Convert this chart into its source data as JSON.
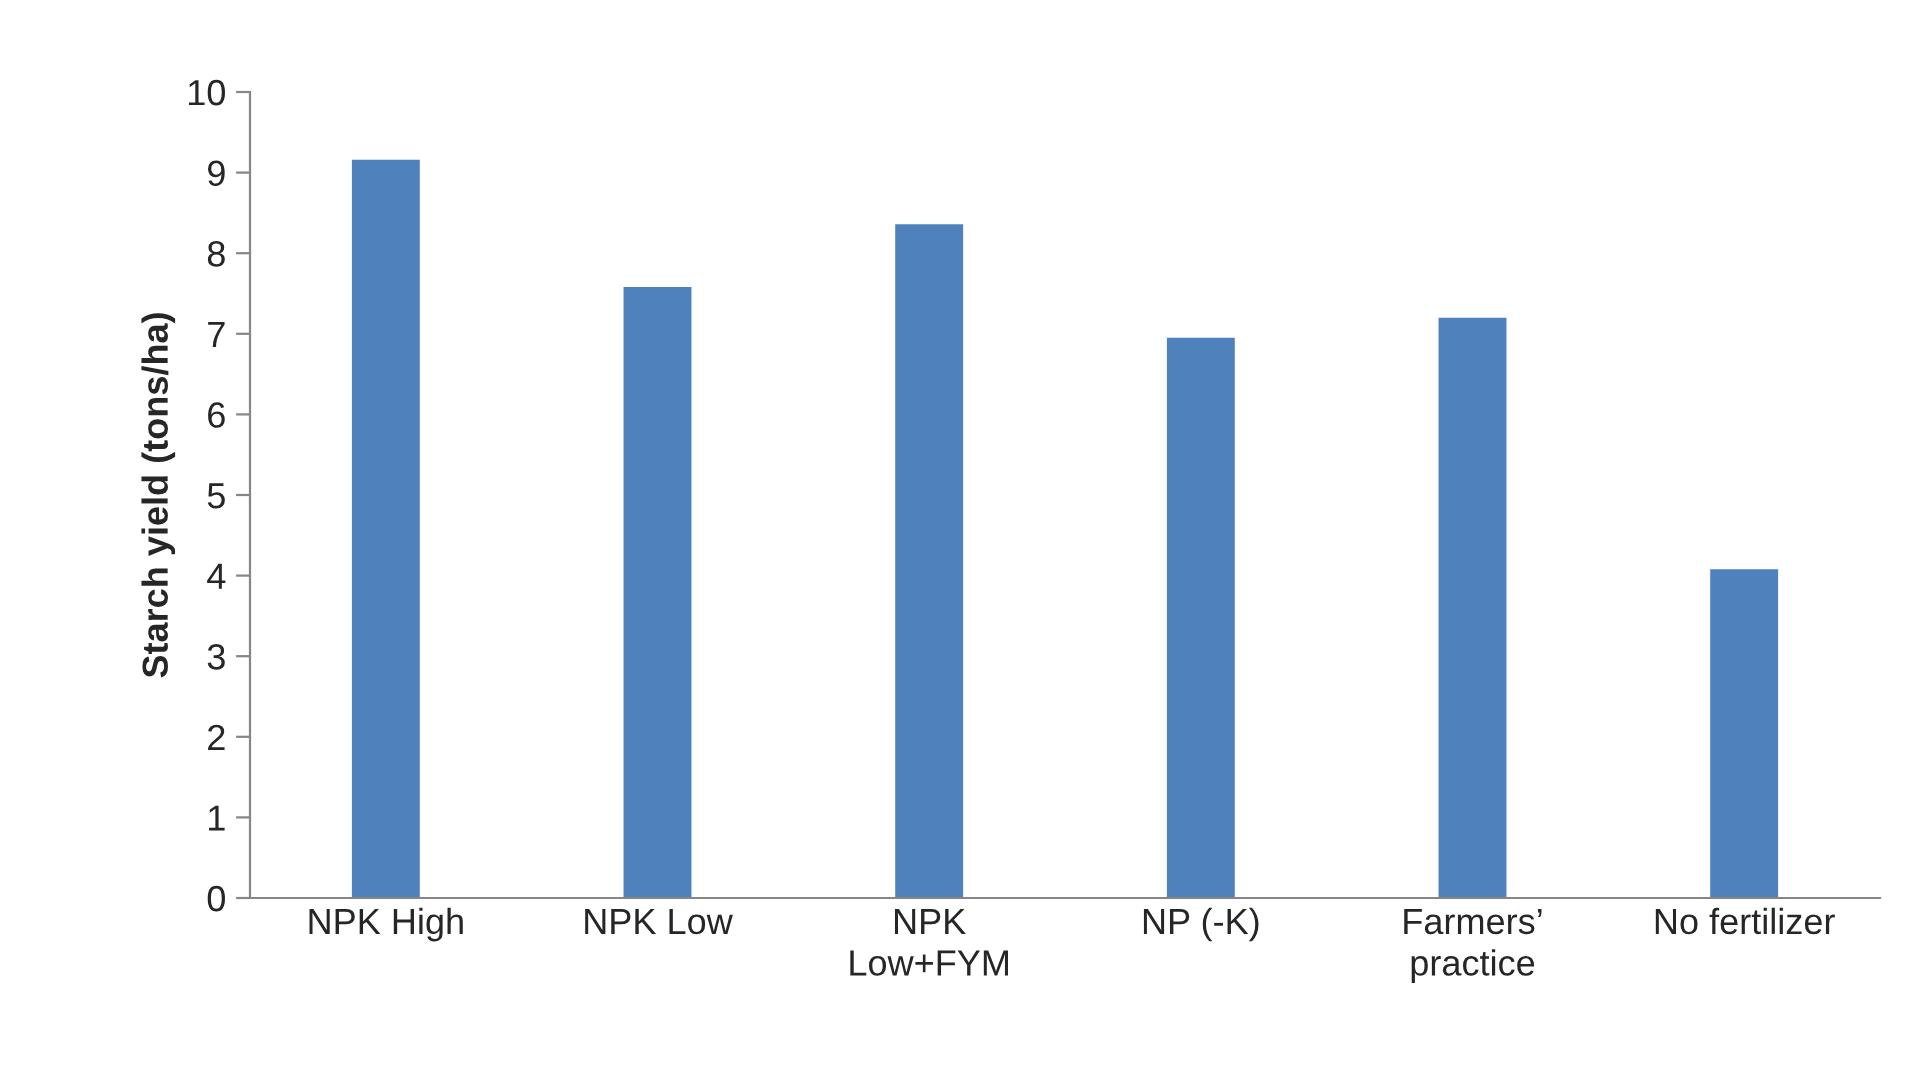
{
  "chart_data": {
    "type": "bar",
    "ylabel": "Starch yield (tons/ha)",
    "categories": [
      "NPK High",
      "NPK Low",
      "NPK\nLow+FYM",
      "NP (-K)",
      "Farmers’\npractice",
      "No fertilizer"
    ],
    "values": [
      9.16,
      7.58,
      8.36,
      6.95,
      7.2,
      4.08
    ],
    "color": "#4f81bd",
    "ylim": [
      0,
      10
    ],
    "yticks": [
      0,
      1,
      2,
      3,
      4,
      5,
      6,
      7,
      8,
      9,
      10
    ],
    "grid": false,
    "legend": false
  }
}
